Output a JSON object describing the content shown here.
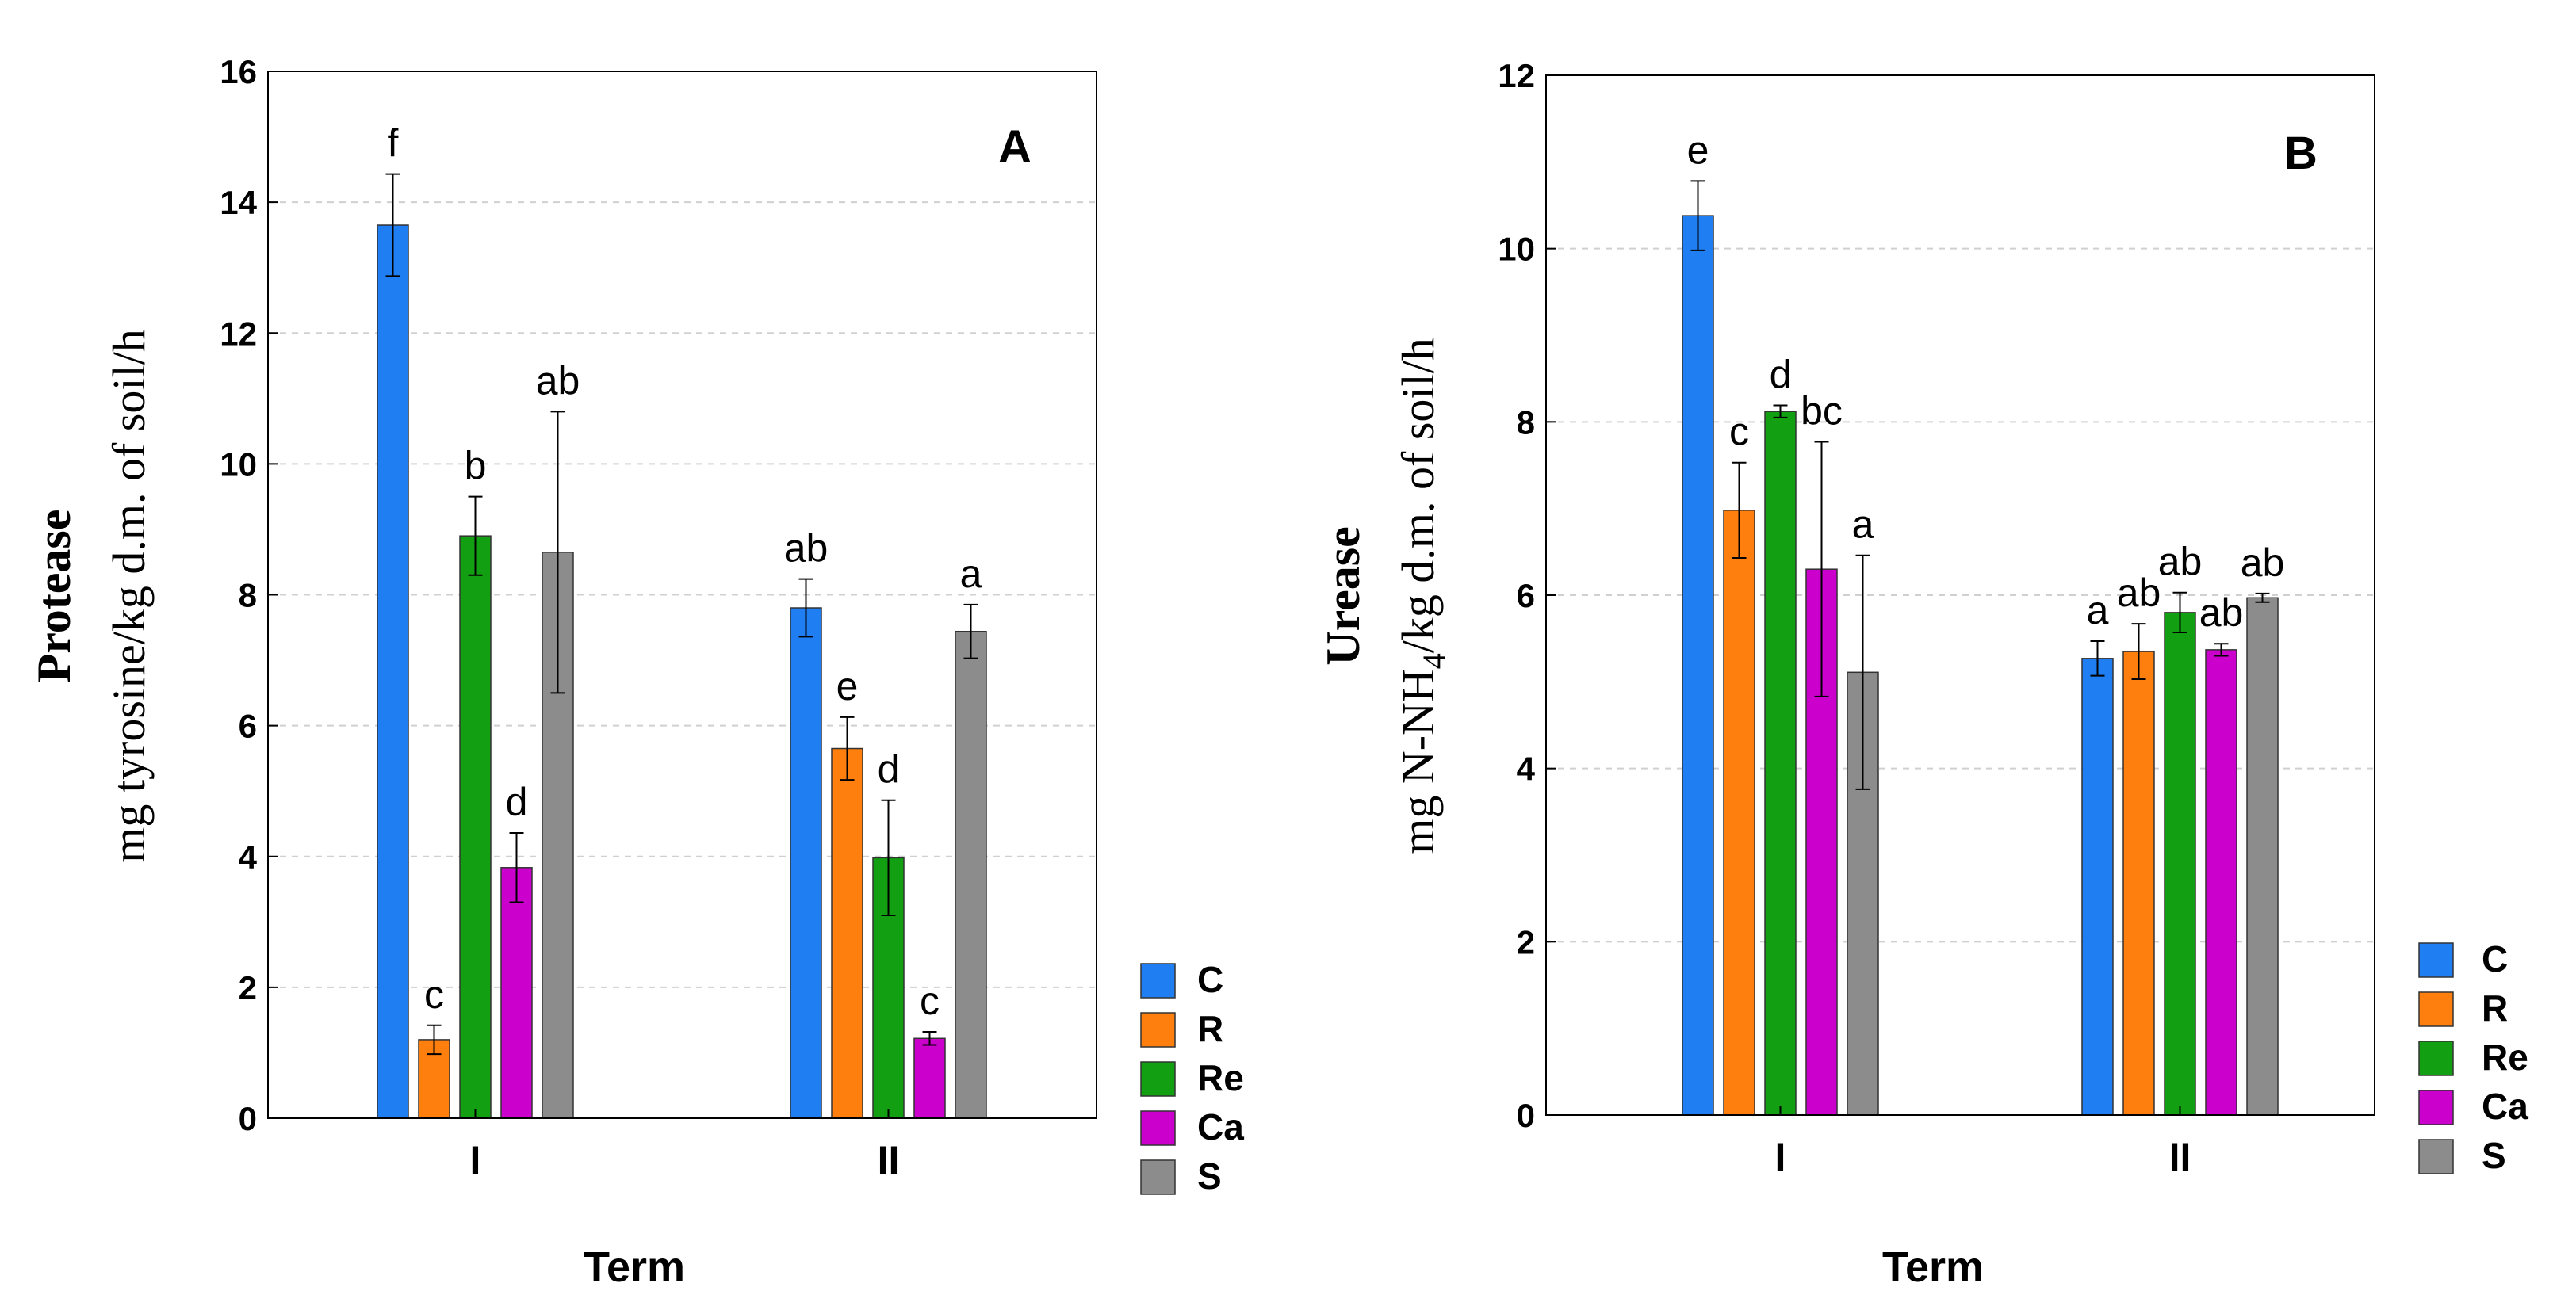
{
  "chart_data": [
    {
      "type": "bar",
      "panel_label": "A",
      "title": "",
      "ylabel_bold": "Protease",
      "ylabel_unit": "mg tyrosine/kg d.m. of soil/h",
      "xlabel": "Term",
      "categories": [
        "I",
        "II"
      ],
      "ylim": [
        0,
        16
      ],
      "yticks": [
        "0",
        "2",
        "4",
        "6",
        "8",
        "10",
        "12",
        "14",
        "16"
      ],
      "grid": true,
      "legend_position": "right",
      "series": [
        {
          "name": "C",
          "color": "#1f7ff2",
          "values": [
            13.65,
            7.8
          ],
          "errors": [
            0.78,
            0.44
          ],
          "letters": [
            "f",
            "ab"
          ]
        },
        {
          "name": "R",
          "color": "#ff7f0e",
          "values": [
            1.2,
            5.65
          ],
          "errors": [
            0.22,
            0.48
          ],
          "letters": [
            "c",
            "e"
          ]
        },
        {
          "name": "Re",
          "color": "#12a012",
          "values": [
            8.9,
            3.98
          ],
          "errors": [
            0.6,
            0.88
          ],
          "letters": [
            "b",
            "d"
          ]
        },
        {
          "name": "Ca",
          "color": "#cc00cc",
          "values": [
            3.83,
            1.22
          ],
          "errors": [
            0.53,
            0.1
          ],
          "letters": [
            "d",
            "c"
          ]
        },
        {
          "name": "S",
          "color": "#8c8c8c",
          "values": [
            8.65,
            7.44
          ],
          "errors": [
            2.15,
            0.41
          ],
          "letters": [
            "ab",
            "a"
          ]
        }
      ]
    },
    {
      "type": "bar",
      "panel_label": "B",
      "title": "",
      "ylabel_bold": "Urease",
      "ylabel_unit_pre": "mg N-NH",
      "ylabel_unit_sub": "4",
      "ylabel_unit_post": "/kg d.m. of soil/h",
      "xlabel": "Term",
      "categories": [
        "I",
        "II"
      ],
      "ylim": [
        0,
        12
      ],
      "yticks": [
        "0",
        "2",
        "4",
        "6",
        "8",
        "10",
        "12"
      ],
      "grid": true,
      "legend_position": "right",
      "series": [
        {
          "name": "C",
          "color": "#1f7ff2",
          "values": [
            10.38,
            5.27
          ],
          "errors": [
            0.4,
            0.2
          ],
          "letters": [
            "e",
            "a"
          ]
        },
        {
          "name": "R",
          "color": "#ff7f0e",
          "values": [
            6.98,
            5.35
          ],
          "errors": [
            0.55,
            0.32
          ],
          "letters": [
            "c",
            "ab"
          ]
        },
        {
          "name": "Re",
          "color": "#12a012",
          "values": [
            8.12,
            5.8
          ],
          "errors": [
            0.07,
            0.23
          ],
          "letters": [
            "d",
            "ab"
          ]
        },
        {
          "name": "Ca",
          "color": "#cc00cc",
          "values": [
            6.3,
            5.37
          ],
          "errors": [
            1.47,
            0.07
          ],
          "letters": [
            "bc",
            "ab"
          ]
        },
        {
          "name": "S",
          "color": "#8c8c8c",
          "values": [
            5.11,
            5.97
          ],
          "errors": [
            1.35,
            0.05
          ],
          "letters": [
            "a",
            "ab"
          ]
        }
      ]
    }
  ]
}
